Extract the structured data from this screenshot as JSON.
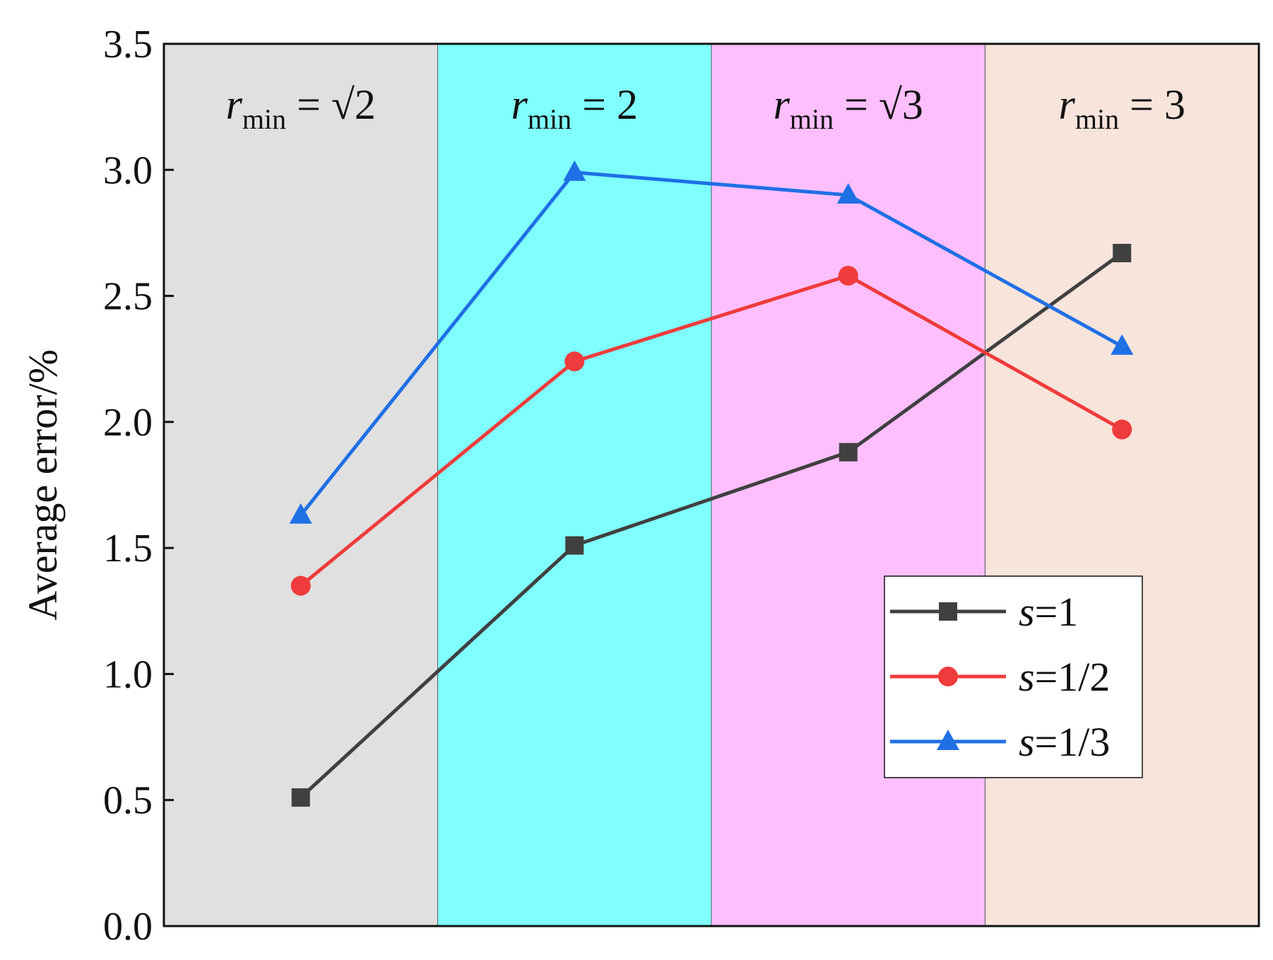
{
  "chart_data": {
    "type": "line",
    "ylabel": "Average error/%",
    "xlabel": "",
    "title": "",
    "ylim": [
      0.0,
      3.5
    ],
    "yticks": [
      "0.0",
      "0.5",
      "1.0",
      "1.5",
      "2.0",
      "2.5",
      "3.0",
      "3.5"
    ],
    "categories": [
      "√2",
      "2",
      "√3",
      "3"
    ],
    "bands": [
      {
        "var": "r",
        "sub": "min",
        "eq": " = ",
        "value": "√2",
        "color": "#e0e0e0"
      },
      {
        "var": "r",
        "sub": "min",
        "eq": " = ",
        "value": "2",
        "color": "#80ffff"
      },
      {
        "var": "r",
        "sub": "min",
        "eq": " = ",
        "value": "√3",
        "color": "#ffbfff"
      },
      {
        "var": "r",
        "sub": "min",
        "eq": " = ",
        "value": "3",
        "color": "#f7e4db"
      }
    ],
    "series": [
      {
        "name": "s=1",
        "var": "s",
        "rest": "=1",
        "color": "#404040",
        "marker": "square",
        "values": [
          0.51,
          1.51,
          1.88,
          2.67
        ]
      },
      {
        "name": "s=1/2",
        "var": "s",
        "rest": "=1/2",
        "color": "#ef3b3b",
        "marker": "circle",
        "values": [
          1.35,
          2.24,
          2.58,
          1.97
        ]
      },
      {
        "name": "s=1/3",
        "var": "s",
        "rest": "=1/3",
        "color": "#1f6fe5",
        "marker": "triangle",
        "values": [
          1.63,
          2.99,
          2.9,
          2.3
        ]
      }
    ],
    "legend_position": "bottom-right",
    "grid": false
  }
}
